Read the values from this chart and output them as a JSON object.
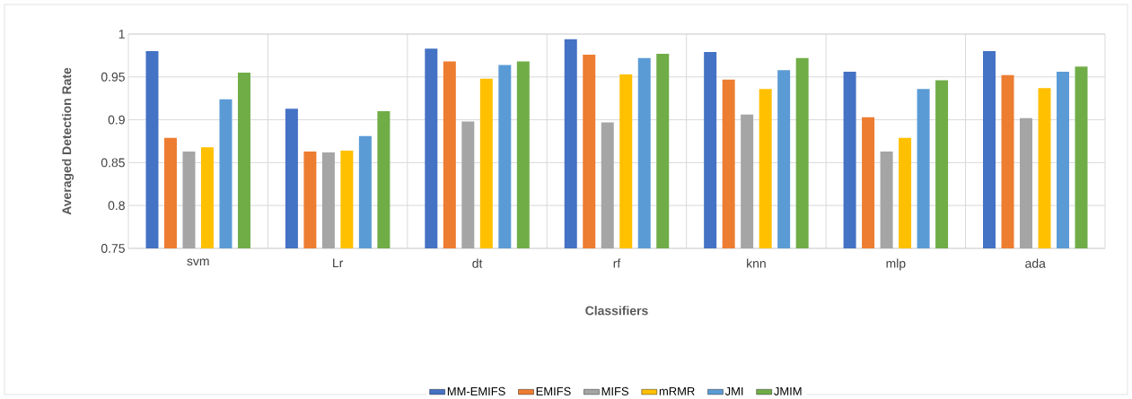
{
  "chart_data": {
    "type": "bar",
    "xlabel": "Classifiers",
    "ylabel": "Averaged Detection Rate",
    "categories": [
      "svm",
      "Lr",
      "dt",
      "rf",
      "knn",
      "mlp",
      "ada"
    ],
    "series": [
      {
        "name": "MM-EMIFS",
        "color": "#4472c4",
        "values": [
          0.98,
          0.913,
          0.983,
          0.994,
          0.979,
          0.956,
          0.98
        ]
      },
      {
        "name": "EMIFS",
        "color": "#ed7d31",
        "values": [
          0.879,
          0.863,
          0.968,
          0.976,
          0.947,
          0.903,
          0.952
        ]
      },
      {
        "name": "MIFS",
        "color": "#a5a5a5",
        "values": [
          0.863,
          0.862,
          0.898,
          0.897,
          0.906,
          0.863,
          0.902
        ]
      },
      {
        "name": "mRMR",
        "color": "#ffc000",
        "values": [
          0.868,
          0.864,
          0.948,
          0.953,
          0.936,
          0.879,
          0.937
        ]
      },
      {
        "name": "JMI",
        "color": "#5b9bd5",
        "values": [
          0.924,
          0.881,
          0.964,
          0.972,
          0.958,
          0.936,
          0.956
        ]
      },
      {
        "name": "JMIM",
        "color": "#70ad47",
        "values": [
          0.955,
          0.91,
          0.968,
          0.977,
          0.972,
          0.946,
          0.962
        ]
      }
    ],
    "ylim": [
      0.75,
      1
    ],
    "yticks": [
      0.75,
      0.8,
      0.85,
      0.9,
      0.95,
      1
    ],
    "grid": true,
    "legend": "bottom"
  }
}
